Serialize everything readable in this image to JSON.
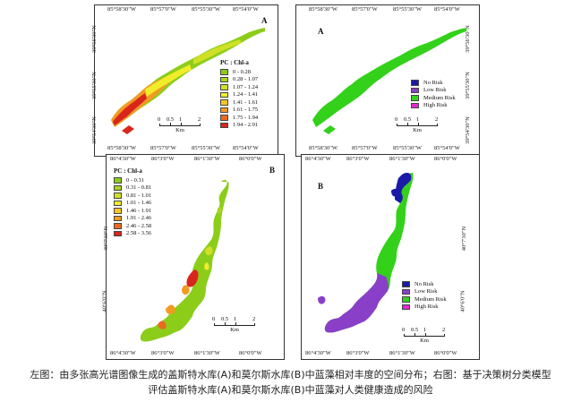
{
  "figures": {
    "top_left": {
      "letter": "A",
      "top_coords": [
        "85°58'30\"W",
        "85°57'0\"W",
        "85°55'30\"W",
        "85°54'0\"W"
      ],
      "bottom_coords": [
        "85°58'30\"W",
        "85°57'0\"W",
        "85°55'30\"W",
        "85°54'0\"W"
      ],
      "side_coords": [
        "39°56'30\"N",
        "39°55'30\"N",
        "39°54'30\"N"
      ],
      "legend_title": "PC : Chl-a",
      "legend": [
        {
          "label": "0 - 0.28",
          "color": "#8ccd1a"
        },
        {
          "label": "0.28 - 1.07",
          "color": "#a9d51f"
        },
        {
          "label": "1.07 - 1.24",
          "color": "#cfe026"
        },
        {
          "label": "1.24 - 1.41",
          "color": "#f1ec2a"
        },
        {
          "label": "1.41 - 1.61",
          "color": "#f8c726"
        },
        {
          "label": "1.61 - 1.75",
          "color": "#f29a22"
        },
        {
          "label": "1.75 - 1.94",
          "color": "#ea6a1f"
        },
        {
          "label": "1.94 - 2.91",
          "color": "#d9261c"
        }
      ],
      "scale": {
        "nums": [
          "0",
          "0.5",
          "1",
          "2"
        ],
        "unit": "Km"
      }
    },
    "top_right": {
      "letter": "A",
      "top_coords": [
        "85°58'30\"W",
        "85°57'0\"W",
        "85°55'30\"W",
        "85°54'0\"W"
      ],
      "bottom_coords": [
        "85°58'30\"W",
        "85°57'0\"W",
        "85°55'30\"W",
        "85°54'0\"W"
      ],
      "side_coords": [
        "39°56'30\"N",
        "39°55'30\"N",
        "39°54'30\"N"
      ],
      "legend": [
        {
          "label": "No Risk",
          "color": "#1a1aa8"
        },
        {
          "label": "Low Risk",
          "color": "#8a3fc9"
        },
        {
          "label": "Medium Risk",
          "color": "#33d11a"
        },
        {
          "label": "High Risk",
          "color": "#e02ad4"
        }
      ],
      "scale": {
        "nums": [
          "0",
          "0.5",
          "1",
          "2"
        ],
        "unit": "Km"
      }
    },
    "bottom_left": {
      "letter": "B",
      "top_coords": [
        "86°4'30\"W",
        "86°3'0\"W",
        "86°1'30\"W",
        "86°0'0\"W"
      ],
      "bottom_coords": [
        "86°4'30\"W",
        "86°3'0\"W",
        "86°1'30\"W",
        "86°0'0\"W"
      ],
      "side_coords": [
        "40°7'30\"N",
        "40°6'0\"N"
      ],
      "legend_title": "PC : Chl-a",
      "legend": [
        {
          "label": "0 - 0.31",
          "color": "#8ccd1a"
        },
        {
          "label": "0.31 - 0.81",
          "color": "#a9d51f"
        },
        {
          "label": "0.81 - 1.01",
          "color": "#cfe026"
        },
        {
          "label": "1.01 - 1.46",
          "color": "#f1ec2a"
        },
        {
          "label": "1.46 - 1.91",
          "color": "#f8c726"
        },
        {
          "label": "1.91 - 2.46",
          "color": "#f29a22"
        },
        {
          "label": "2.46 - 2.58",
          "color": "#ea6a1f"
        },
        {
          "label": "2.58 - 3.56",
          "color": "#d9261c"
        }
      ],
      "scale": {
        "nums": [
          "0",
          "0.5",
          "1",
          "2"
        ],
        "unit": "Km"
      }
    },
    "bottom_right": {
      "letter": "B",
      "top_coords": [
        "86°4'30\"W",
        "86°3'0\"W",
        "86°1'30\"W",
        "86°0'0\"W"
      ],
      "bottom_coords": [
        "86°4'30\"W",
        "86°3'0\"W",
        "86°1'30\"W",
        "86°0'0\"W"
      ],
      "side_coords": [
        "40°7'30\"N",
        "40°6'0\"N"
      ],
      "legend": [
        {
          "label": "No Risk",
          "color": "#1a1aa8"
        },
        {
          "label": "Low Risk",
          "color": "#8a3fc9"
        },
        {
          "label": "Medium Risk",
          "color": "#33d11a"
        },
        {
          "label": "High Risk",
          "color": "#e02ad4"
        }
      ],
      "scale": {
        "nums": [
          "0",
          "0.5",
          "1",
          "2"
        ],
        "unit": "Km"
      }
    }
  },
  "caption": {
    "line1": "左图：由多张高光谱图像生成的盖斯特水库(A)和莫尔斯水库(B)中蓝藻相对丰度的空间分布；右图：基于决策树分类模型",
    "line2": "评估盖斯特水库(A)和莫尔斯水库(B)中蓝藻对人类健康造成的风险"
  }
}
